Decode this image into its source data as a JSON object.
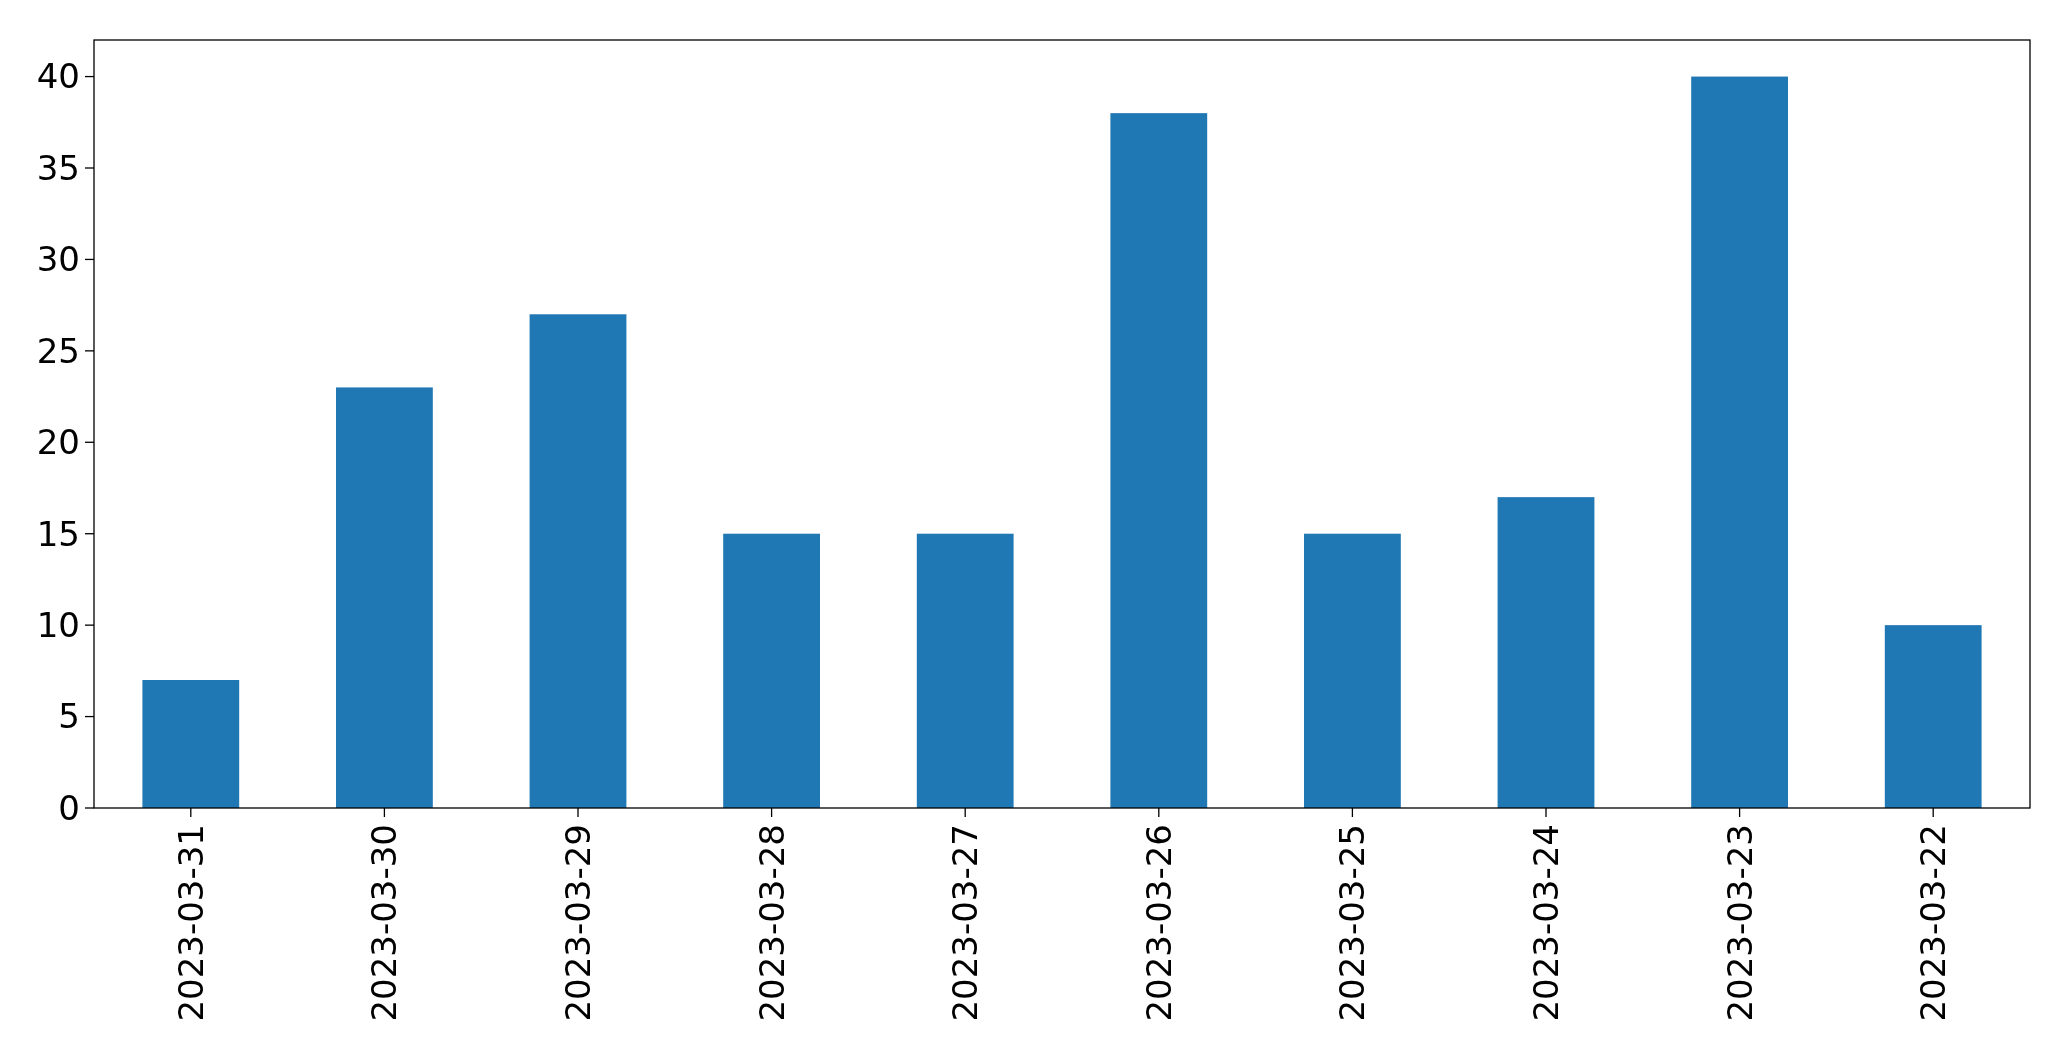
{
  "chart_data": {
    "type": "bar",
    "categories": [
      "2023-03-31",
      "2023-03-30",
      "2023-03-29",
      "2023-03-28",
      "2023-03-27",
      "2023-03-26",
      "2023-03-25",
      "2023-03-24",
      "2023-03-23",
      "2023-03-22"
    ],
    "values": [
      7,
      23,
      27,
      15,
      15,
      38,
      15,
      17,
      40,
      10
    ],
    "color": "#1f77b4",
    "ylim": [
      0,
      42
    ],
    "yticks": [
      0,
      5,
      10,
      15,
      20,
      25,
      30,
      35,
      40
    ],
    "grid": false
  }
}
